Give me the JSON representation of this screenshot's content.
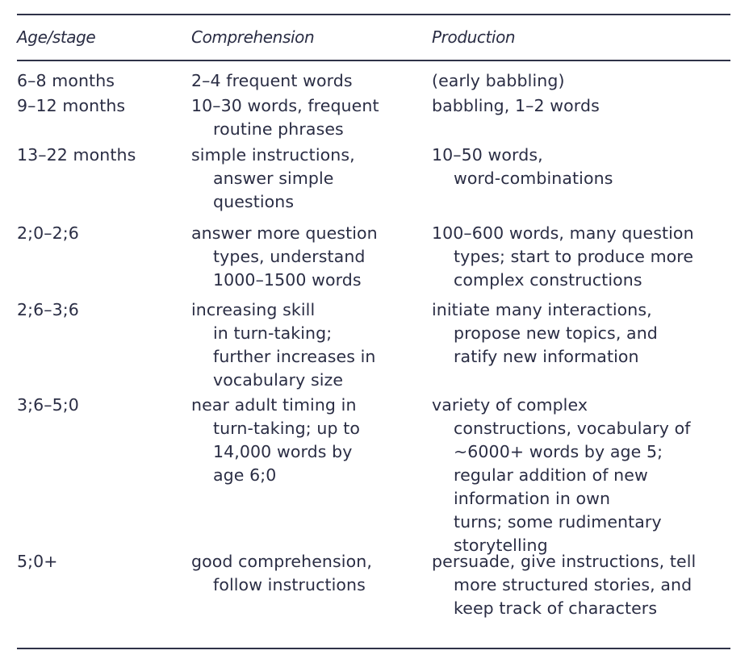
{
  "table": {
    "headers": [
      "Age/stage",
      "Comprehension",
      "Production"
    ],
    "rows": [
      {
        "age": [
          "6–8 months"
        ],
        "comprehension": [
          "2–4 frequent words"
        ],
        "production": [
          "(early babbling)"
        ]
      },
      {
        "age": [
          "9–12 months"
        ],
        "comprehension": [
          "10–30 words, frequent",
          "routine phrases"
        ],
        "production": [
          "babbling, 1–2 words"
        ]
      },
      {
        "age": [
          "13–22 months"
        ],
        "comprehension": [
          "simple instructions,",
          "answer simple",
          "questions"
        ],
        "production": [
          "10–50 words,",
          "word-combinations"
        ]
      },
      {
        "age": [
          "2;0–2;6"
        ],
        "comprehension": [
          "answer more question",
          "types, understand",
          "1000–1500 words"
        ],
        "production": [
          "100–600 words, many question",
          "types; start to produce more",
          "complex constructions"
        ]
      },
      {
        "age": [
          "2;6–3;6"
        ],
        "comprehension": [
          "increasing skill",
          "in turn-taking;",
          "further increases in",
          "vocabulary size"
        ],
        "production": [
          "initiate many interactions,",
          "propose new topics, and",
          "ratify new information"
        ]
      },
      {
        "age": [
          "3;6–5;0"
        ],
        "comprehension": [
          "near adult timing in",
          "turn-taking; up to",
          "14,000 words by",
          "age 6;0"
        ],
        "production": [
          "variety of complex",
          "constructions, vocabulary of",
          "~6000+ words by age 5;",
          "regular addition of new",
          "information in own",
          "turns; some rudimentary",
          "storytelling"
        ]
      },
      {
        "age": [
          "5;0+"
        ],
        "comprehension": [
          "good comprehension,",
          "follow instructions"
        ],
        "production": [
          "persuade, give instructions, tell",
          "more structured stories, and",
          "keep track of characters"
        ]
      }
    ]
  },
  "colors": {
    "text": "#2a2d44",
    "rule": "#2f3248",
    "background": "#ffffff"
  }
}
